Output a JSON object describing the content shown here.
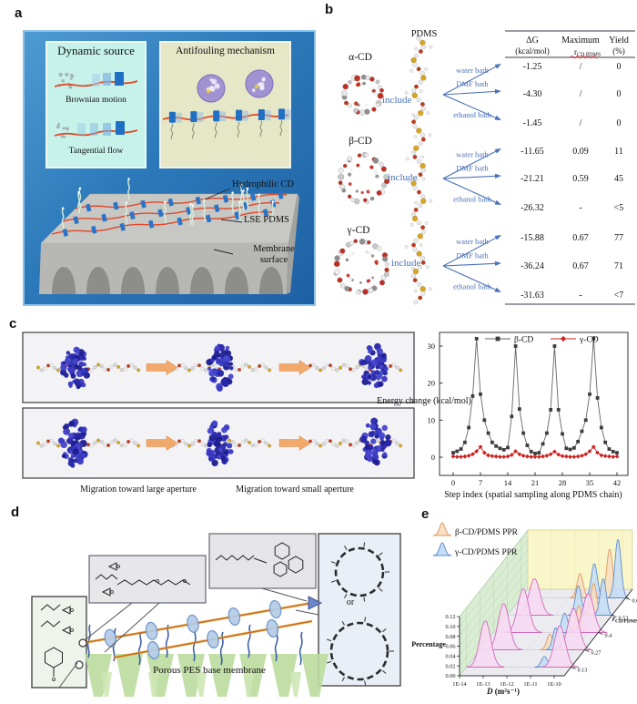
{
  "panels": {
    "a": {
      "label": "a",
      "dynamic_box": {
        "title": "Dynamic source",
        "caption1": "Brownian motion",
        "caption2": "Tangential flow",
        "bg": "#c6f2ea"
      },
      "antifouling_box": {
        "title": "Antifouling mechanism",
        "bg": "#e6e7c6"
      },
      "membrane_labels": {
        "cd": "Hydrophilic CD",
        "pdms": "LSE PDMS",
        "surface": "Membrane\nsurface"
      },
      "bg_color": "#2c79ba"
    },
    "b": {
      "label": "b",
      "pdms_label": "PDMS",
      "include_label": "include",
      "cd_labels": [
        "α-CD",
        "β-CD",
        "γ-CD"
      ],
      "baths": [
        "water bath",
        "DMF bath",
        "ethanol bath"
      ],
      "arrow_color": "#4a71b8",
      "table": {
        "header": {
          "dg1": "ΔG",
          "dg2": "(kcal/mol)",
          "max1": "Maximum",
          "max_r": "r",
          "max_sub": "CD,PDMS",
          "yield1": "Yield",
          "yield2": "(%)"
        },
        "groups": [
          {
            "cd": "α-CD",
            "rows": [
              [
                "-1.25",
                "/",
                "0"
              ],
              [
                "-4.30",
                "/",
                "0"
              ],
              [
                "-1.45",
                "/",
                "0"
              ]
            ]
          },
          {
            "cd": "β-CD",
            "rows": [
              [
                "-11.65",
                "0.09",
                "11"
              ],
              [
                "-21.21",
                "0.59",
                "45"
              ],
              [
                "-26.32",
                "-",
                "<5"
              ]
            ]
          },
          {
            "cd": "γ-CD",
            "rows": [
              [
                "-15.88",
                "0.67",
                "77"
              ],
              [
                "-36.24",
                "0.67",
                "71"
              ],
              [
                "-31.63",
                "-",
                "<7"
              ]
            ]
          }
        ]
      }
    },
    "c": {
      "label": "c",
      "caption_left": "Migration toward large aperture",
      "caption_right": "Migration toward small aperture"
    },
    "d": {
      "label": "d",
      "membrane_text": "Porous PES base membrane",
      "or_text": "or"
    },
    "e": {
      "label": "e"
    }
  },
  "chart_data": [
    {
      "type": "line",
      "title": "",
      "xlabel": "Step index (spatial sampling along PDMS chain)",
      "ylabel": "Energy change (kcal/mol)",
      "x_ticks": [
        0,
        7,
        14,
        21,
        28,
        35,
        42
      ],
      "y_ticks": [
        0,
        10,
        20,
        30
      ],
      "xlim": [
        -1.5,
        44
      ],
      "ylim": [
        -2.5,
        36
      ],
      "grid": false,
      "legend_position": "top-center",
      "x": [
        0,
        1,
        2,
        3,
        4,
        5,
        6,
        7,
        8,
        9,
        10,
        11,
        12,
        13,
        14,
        15,
        16,
        17,
        18,
        19,
        20,
        21,
        22,
        23,
        24,
        25,
        26,
        27,
        28,
        29,
        30,
        31,
        32,
        33,
        34,
        35,
        36,
        37,
        38,
        39,
        40,
        41,
        42
      ],
      "series": [
        {
          "name": "β-CD",
          "color": "#3d3d3d",
          "marker": "square",
          "values": [
            1.2,
            1.6,
            2.2,
            4,
            8,
            16.5,
            32,
            17,
            10,
            6.5,
            4,
            3,
            2.4,
            2,
            2.6,
            11,
            30,
            13,
            6.5,
            3.2,
            1.5,
            1,
            1.2,
            3.6,
            6.5,
            12.8,
            30,
            12.8,
            6.3,
            2.4,
            2.1,
            2.5,
            4.2,
            7,
            10,
            17,
            32,
            16,
            8,
            4,
            2.2,
            1.5,
            1.2
          ]
        },
        {
          "name": "γ-CD",
          "color": "#cc2222",
          "marker": "diamond",
          "values": [
            0.2,
            0.1,
            0.1,
            0.2,
            0.4,
            0.8,
            1.6,
            2.8,
            1.2,
            0.5,
            0.3,
            0.2,
            0.1,
            0.1,
            0.2,
            0.6,
            1.6,
            0.8,
            0.4,
            0.2,
            0.1,
            0.1,
            0.1,
            0.2,
            0.4,
            0.8,
            1.5,
            0.7,
            0.3,
            0.2,
            0.1,
            0.1,
            0.2,
            0.4,
            0.8,
            1.6,
            2.8,
            1.2,
            0.5,
            0.3,
            0.2,
            0.1,
            0.2
          ]
        }
      ]
    },
    {
      "type": "area",
      "subtype": "3d-waterfall",
      "xlabel_main": "D",
      "xlabel_rest": " (m²s⁻¹)",
      "ylabel": "Percentage",
      "zlabel_main": "r",
      "zlabel_sub": "CD/PDMS",
      "x_ticks": [
        "1E-14",
        "1E-13",
        "1E-12",
        "1E-11",
        "1E-10"
      ],
      "y_ticks": [
        "0.00",
        "0.02",
        "0.04",
        "0.06",
        "0.08",
        "0.10",
        "0.12"
      ],
      "z_ticks": [
        "0.13",
        "0.27",
        "0.4",
        "0.53",
        "0.67"
      ],
      "legend": [
        {
          "name": "β-CD/PDMS PPR",
          "fill": "#f8dec3",
          "stroke": "#e09a5f"
        },
        {
          "name": "γ-CD/PDMS PPR",
          "fill": "#c4ddf6",
          "stroke": "#5f8fc9"
        }
      ],
      "series_colors": {
        "mix": {
          "fill": "#f7daf1",
          "stroke": "#cf6cbb"
        },
        "beta": {
          "fill": "#f8dec3",
          "stroke": "#e09a5f"
        },
        "gamma": {
          "fill": "#c4ddf6",
          "stroke": "#5f8fc9"
        }
      },
      "ridges": [
        {
          "r": "0.13",
          "peaks": [
            {
              "logD": -13.2,
              "h": 0.095,
              "s": "mix"
            },
            {
              "logD": -10.7,
              "h": 0.022,
              "s": "gamma"
            },
            {
              "logD": -10.05,
              "h": 0.085,
              "s": "mix"
            }
          ]
        },
        {
          "r": "0.27",
          "peaks": [
            {
              "logD": -13.0,
              "h": 0.095,
              "s": "mix"
            },
            {
              "logD": -11.05,
              "h": 0.032,
              "s": "beta"
            },
            {
              "logD": -10.8,
              "h": 0.045,
              "s": "gamma"
            },
            {
              "logD": -10.05,
              "h": 0.085,
              "s": "mix"
            }
          ]
        },
        {
          "r": "0.4",
          "peaks": [
            {
              "logD": -12.75,
              "h": 0.09,
              "s": "mix"
            },
            {
              "logD": -11.0,
              "h": 0.04,
              "s": "gamma"
            },
            {
              "logD": -10.4,
              "h": 0.055,
              "s": "beta"
            },
            {
              "logD": -10.0,
              "h": 0.08,
              "s": "mix"
            }
          ]
        },
        {
          "r": "0.53",
          "peaks": [
            {
              "logD": -12.85,
              "h": 0.075,
              "s": "mix"
            },
            {
              "logD": -11.0,
              "h": 0.06,
              "s": "gamma"
            },
            {
              "logD": -10.35,
              "h": 0.065,
              "s": "beta"
            },
            {
              "logD": -9.95,
              "h": 0.075,
              "s": "gamma"
            }
          ]
        },
        {
          "r": "0.67",
          "peaks": [
            {
              "logD": -11.5,
              "h": 0.05,
              "s": "beta"
            },
            {
              "logD": -10.9,
              "h": 0.07,
              "s": "gamma"
            },
            {
              "logD": -10.25,
              "h": 0.1,
              "s": "beta"
            },
            {
              "logD": -9.9,
              "h": 0.12,
              "s": "gamma"
            }
          ]
        }
      ]
    }
  ]
}
